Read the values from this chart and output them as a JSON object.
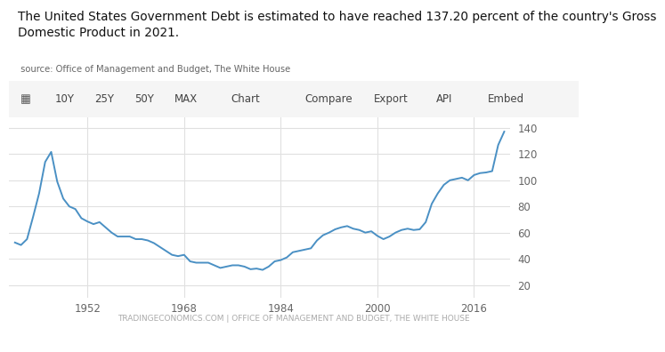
{
  "title_main": "The United States Government Debt is estimated to have reached 137.20 percent of the country's Gross\nDomestic Product in 2021.",
  "title_source": " source: Office of Management and Budget, The White House",
  "footer": "TRADINGECONOMICS.COM | OFFICE OF MANAGEMENT AND BUDGET, THE WHITE HOUSE",
  "line_color": "#4a90c4",
  "bg_color": "#ffffff",
  "plot_bg_color": "#ffffff",
  "grid_color": "#e0e0e0",
  "toolbar_bg": "#f5f5f5",
  "x_ticks": [
    1952,
    1968,
    1984,
    2000,
    2016
  ],
  "y_ticks": [
    20,
    40,
    60,
    80,
    100,
    120,
    140
  ],
  "ylim": [
    10,
    148
  ],
  "xlim": [
    1939,
    2022
  ],
  "years": [
    1940,
    1941,
    1942,
    1943,
    1944,
    1945,
    1946,
    1947,
    1948,
    1949,
    1950,
    1951,
    1952,
    1953,
    1954,
    1955,
    1956,
    1957,
    1958,
    1959,
    1960,
    1961,
    1962,
    1963,
    1964,
    1965,
    1966,
    1967,
    1968,
    1969,
    1970,
    1971,
    1972,
    1973,
    1974,
    1975,
    1976,
    1977,
    1978,
    1979,
    1980,
    1981,
    1982,
    1983,
    1984,
    1985,
    1986,
    1987,
    1988,
    1989,
    1990,
    1991,
    1992,
    1993,
    1994,
    1995,
    1996,
    1997,
    1998,
    1999,
    2000,
    2001,
    2002,
    2003,
    2004,
    2005,
    2006,
    2007,
    2008,
    2009,
    2010,
    2011,
    2012,
    2013,
    2014,
    2015,
    2016,
    2017,
    2018,
    2019,
    2020,
    2021
  ],
  "values": [
    52.4,
    50.5,
    55.0,
    72.0,
    90.0,
    114.0,
    121.7,
    99.0,
    86.0,
    80.0,
    78.0,
    71.0,
    68.5,
    66.5,
    68.0,
    64.0,
    60.0,
    57.0,
    57.0,
    57.0,
    55.0,
    55.0,
    54.0,
    52.0,
    49.0,
    46.0,
    43.0,
    42.0,
    43.0,
    38.0,
    37.0,
    37.0,
    37.0,
    35.0,
    33.0,
    34.0,
    35.0,
    35.0,
    34.0,
    32.0,
    32.5,
    31.5,
    34.0,
    38.0,
    39.0,
    41.0,
    45.0,
    46.0,
    47.0,
    48.0,
    54.0,
    58.0,
    60.0,
    62.5,
    64.0,
    65.0,
    63.0,
    62.0,
    60.0,
    61.0,
    57.5,
    55.0,
    57.0,
    60.0,
    62.0,
    63.0,
    62.0,
    62.5,
    68.0,
    82.0,
    90.0,
    96.5,
    100.0,
    101.0,
    102.0,
    100.0,
    104.0,
    105.5,
    106.0,
    107.0,
    127.0,
    137.2
  ],
  "toolbar_labels": [
    "10Y",
    "25Y",
    "50Y",
    "MAX",
    "Chart",
    "Compare",
    "Export",
    "API",
    "Embed"
  ],
  "toolbar_x": [
    0.08,
    0.15,
    0.22,
    0.29,
    0.39,
    0.52,
    0.64,
    0.75,
    0.84
  ]
}
